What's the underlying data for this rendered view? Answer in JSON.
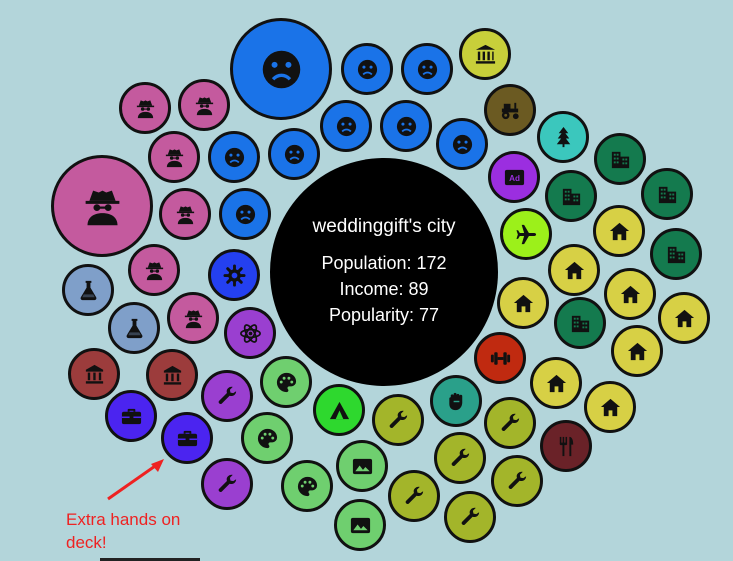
{
  "city": {
    "title": "weddinggift's city",
    "population_label": "Population: 172",
    "income_label": "Income: 89",
    "popularity_label": "Popularity: 77"
  },
  "annotation": {
    "text": "Extra hands on deck!"
  },
  "colors": {
    "background": "#b3d5da",
    "unhappy": "#1a73e8",
    "spy": "#c45a9e",
    "lab": "#7f9fc9",
    "bank": "#9c3c3c",
    "briefcase": "#4b24f0",
    "worker": "#9a3fd0",
    "wrench": "#a3b52a",
    "art": "#6fcf6f",
    "house": "#d7d045",
    "building": "#147a4e",
    "tree": "#3bc7bd",
    "annotation": "#e22222"
  },
  "bubbles": [
    {
      "icon": "sad-face-icon",
      "color": "#1a73e8"
    },
    {
      "icon": "sad-face-icon",
      "color": "#1a73e8"
    },
    {
      "icon": "sad-face-icon",
      "color": "#1a73e8"
    },
    {
      "icon": "government-building-icon",
      "color": "#c8cf3a"
    },
    {
      "icon": "spy-icon",
      "color": "#c45a9e"
    },
    {
      "icon": "spy-icon",
      "color": "#c45a9e"
    },
    {
      "icon": "sad-face-icon",
      "color": "#1a73e8"
    },
    {
      "icon": "sad-face-icon",
      "color": "#1a73e8"
    },
    {
      "icon": "tractor-icon",
      "color": "#6b5a22"
    },
    {
      "icon": "pine-tree-icon",
      "color": "#3bc7bd"
    },
    {
      "icon": "spy-icon",
      "color": "#c45a9e"
    },
    {
      "icon": "sad-face-icon",
      "color": "#1a73e8"
    },
    {
      "icon": "sad-face-icon",
      "color": "#1a73e8"
    },
    {
      "icon": "sad-face-icon",
      "color": "#1a73e8"
    },
    {
      "icon": "office-building-icon",
      "color": "#147a4e"
    },
    {
      "icon": "advertising-icon",
      "color": "#9b2ee0"
    },
    {
      "icon": "office-building-icon",
      "color": "#147a4e"
    },
    {
      "icon": "office-building-icon",
      "color": "#147a4e"
    },
    {
      "icon": "spy-icon",
      "color": "#c45a9e"
    },
    {
      "icon": "spy-icon",
      "color": "#c45a9e"
    },
    {
      "icon": "sad-face-icon",
      "color": "#1a73e8"
    },
    {
      "icon": "house-icon",
      "color": "#d7d045"
    },
    {
      "icon": "airplane-icon",
      "color": "#9cf01a"
    },
    {
      "icon": "office-building-icon",
      "color": "#147a4e"
    },
    {
      "icon": "lab-flask-icon",
      "color": "#7f9fc9"
    },
    {
      "icon": "spy-icon",
      "color": "#c45a9e"
    },
    {
      "icon": "factory-gear-icon",
      "color": "#2440f0"
    },
    {
      "icon": "house-icon",
      "color": "#d7d045"
    },
    {
      "icon": "house-icon",
      "color": "#d7d045"
    },
    {
      "icon": "lab-flask-icon",
      "color": "#7f9fc9"
    },
    {
      "icon": "spy-icon",
      "color": "#c45a9e"
    },
    {
      "icon": "house-icon",
      "color": "#d7d045"
    },
    {
      "icon": "office-building-icon",
      "color": "#147a4e"
    },
    {
      "icon": "house-icon",
      "color": "#d7d045"
    },
    {
      "icon": "atom-icon",
      "color": "#9a3fd0"
    },
    {
      "icon": "house-icon",
      "color": "#d7d045"
    },
    {
      "icon": "bank-icon",
      "color": "#9c3c3c"
    },
    {
      "icon": "bank-icon",
      "color": "#9c3c3c"
    },
    {
      "icon": "gym-icon",
      "color": "#c02a10"
    },
    {
      "icon": "palette-icon",
      "color": "#6fcf6f"
    },
    {
      "icon": "wrench-icon",
      "color": "#9a3fd0"
    },
    {
      "icon": "house-icon",
      "color": "#d7d045"
    },
    {
      "icon": "fist-icon",
      "color": "#2aa08a"
    },
    {
      "icon": "camp-tent-icon",
      "color": "#2ed82e"
    },
    {
      "icon": "wrench-icon",
      "color": "#a3b52a"
    },
    {
      "icon": "house-icon",
      "color": "#d7d045"
    },
    {
      "icon": "briefcase-icon",
      "color": "#4b24f0"
    },
    {
      "icon": "wrench-icon",
      "color": "#a3b52a"
    },
    {
      "icon": "briefcase-icon",
      "color": "#4b24f0"
    },
    {
      "icon": "palette-icon",
      "color": "#6fcf6f"
    },
    {
      "icon": "image-icon",
      "color": "#6fcf6f"
    },
    {
      "icon": "wrench-icon",
      "color": "#a3b52a"
    },
    {
      "icon": "restaurant-icon",
      "color": "#6a2228"
    },
    {
      "icon": "wrench-icon",
      "color": "#a3b52a"
    },
    {
      "icon": "wrench-icon",
      "color": "#9a3fd0"
    },
    {
      "icon": "palette-icon",
      "color": "#6fcf6f"
    },
    {
      "icon": "wrench-icon",
      "color": "#a3b52a"
    },
    {
      "icon": "image-icon",
      "color": "#6fcf6f"
    },
    {
      "icon": "wrench-icon",
      "color": "#a3b52a"
    }
  ]
}
